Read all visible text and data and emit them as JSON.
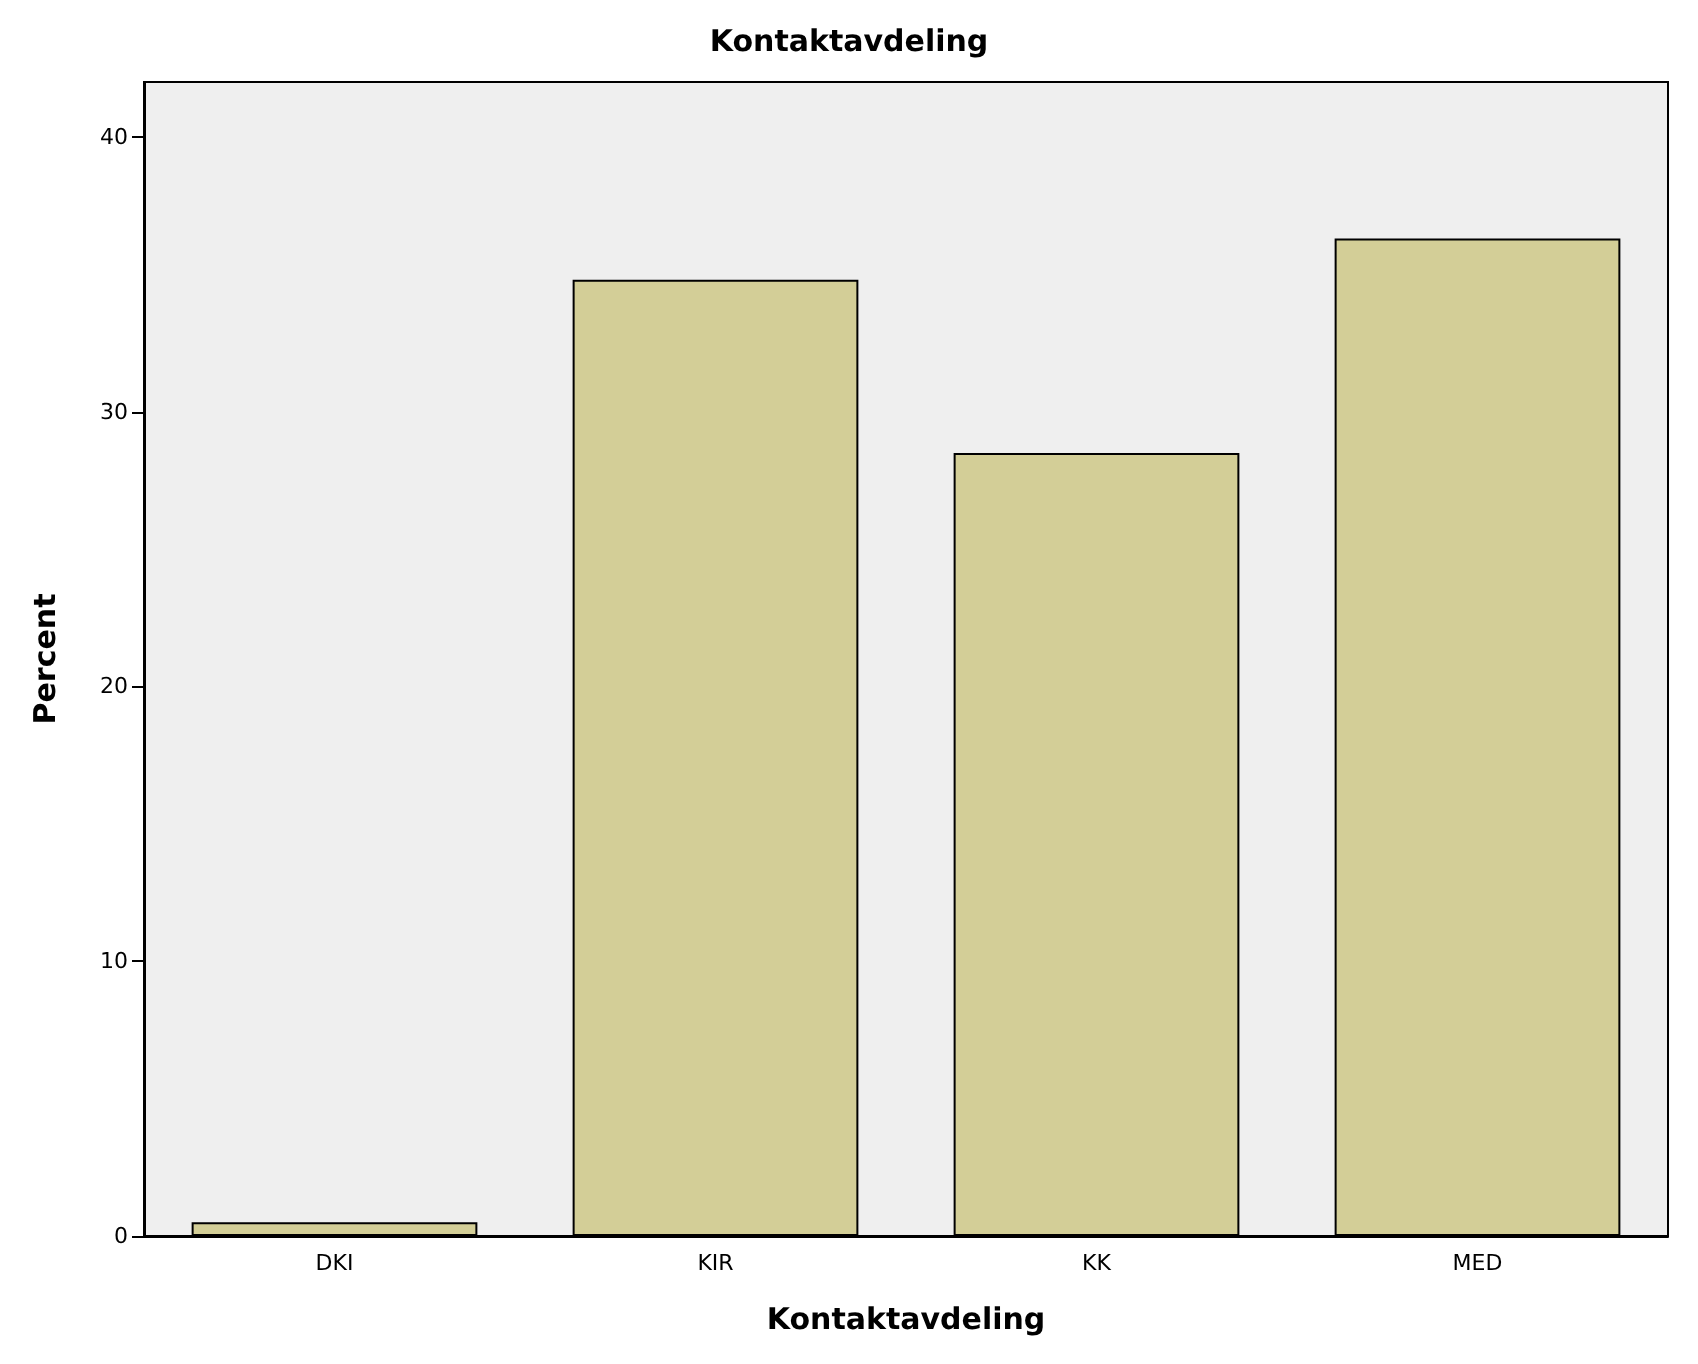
{
  "chart_data": {
    "type": "bar",
    "title": "Kontaktavdeling",
    "xlabel": "Kontaktavdeling",
    "ylabel": "Percent",
    "categories": [
      "DKI",
      "KIR",
      "KK",
      "MED"
    ],
    "values": [
      0.5,
      34.8,
      28.5,
      36.3
    ],
    "color": "#d3ce97",
    "ylim": [
      0,
      42
    ],
    "yticks": [
      0,
      10,
      20,
      30,
      40
    ],
    "grid": false
  }
}
